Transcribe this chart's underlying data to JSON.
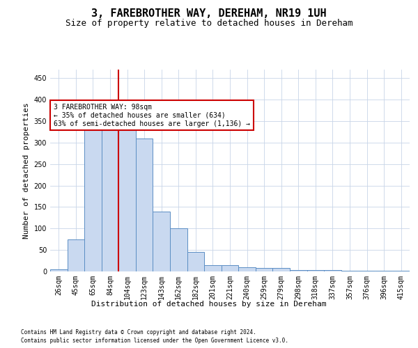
{
  "title": "3, FAREBROTHER WAY, DEREHAM, NR19 1UH",
  "subtitle": "Size of property relative to detached houses in Dereham",
  "xlabel": "Distribution of detached houses by size in Dereham",
  "ylabel": "Number of detached properties",
  "categories": [
    "26sqm",
    "45sqm",
    "65sqm",
    "84sqm",
    "104sqm",
    "123sqm",
    "143sqm",
    "162sqm",
    "182sqm",
    "201sqm",
    "221sqm",
    "240sqm",
    "259sqm",
    "279sqm",
    "298sqm",
    "318sqm",
    "337sqm",
    "357sqm",
    "376sqm",
    "396sqm",
    "415sqm"
  ],
  "values": [
    5,
    75,
    335,
    355,
    370,
    310,
    140,
    100,
    45,
    15,
    15,
    10,
    8,
    8,
    4,
    4,
    4,
    2,
    2,
    1,
    1
  ],
  "bar_color": "#c9d9f0",
  "bar_edge_color": "#5b8ec4",
  "vline_color": "#cc0000",
  "ylim": [
    0,
    470
  ],
  "yticks": [
    0,
    50,
    100,
    150,
    200,
    250,
    300,
    350,
    400,
    450
  ],
  "annotation_text": "3 FAREBROTHER WAY: 98sqm\n← 35% of detached houses are smaller (634)\n63% of semi-detached houses are larger (1,136) →",
  "annotation_box_color": "#ffffff",
  "annotation_box_edge": "#cc0000",
  "footnote1": "Contains HM Land Registry data © Crown copyright and database right 2024.",
  "footnote2": "Contains public sector information licensed under the Open Government Licence v3.0.",
  "bg_color": "#ffffff",
  "grid_color": "#c8d4e8",
  "title_fontsize": 11,
  "subtitle_fontsize": 9,
  "ylabel_fontsize": 8,
  "tick_fontsize": 7,
  "annot_fontsize": 7,
  "xlabel_fontsize": 8,
  "footnote_fontsize": 5.5
}
